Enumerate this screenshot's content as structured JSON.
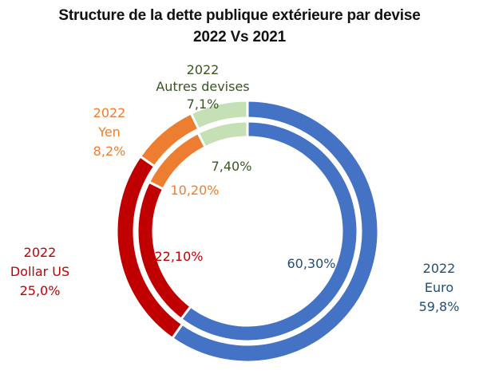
{
  "chart_data": {
    "type": "pie",
    "variant": "double-donut",
    "title": "Structure de la dette publique extérieure par devise",
    "subtitle": "2022 Vs 2021",
    "categories": [
      "Euro",
      "Dollar US",
      "Yen",
      "Autres devises"
    ],
    "colors": {
      "Euro": "#4472C4",
      "Dollar US": "#C00000",
      "Yen": "#ED7D31",
      "Autres devises": "#C5E0B4"
    },
    "label_colors": {
      "Euro": "#1F4E79",
      "Dollar US": "#C00000",
      "Yen": "#ED7D31",
      "Autres devises": "#375623"
    },
    "series": [
      {
        "ring": "outer",
        "name": "2022",
        "values": [
          59.8,
          25.0,
          8.2,
          7.1
        ],
        "labels": [
          "59,8%",
          "25,0%",
          "8,2%",
          "7,1%"
        ]
      },
      {
        "ring": "inner",
        "values": [
          60.3,
          22.1,
          10.2,
          7.4
        ],
        "labels": [
          "60,30%",
          "22,10%",
          "10,20%",
          "7,40%"
        ]
      }
    ]
  }
}
